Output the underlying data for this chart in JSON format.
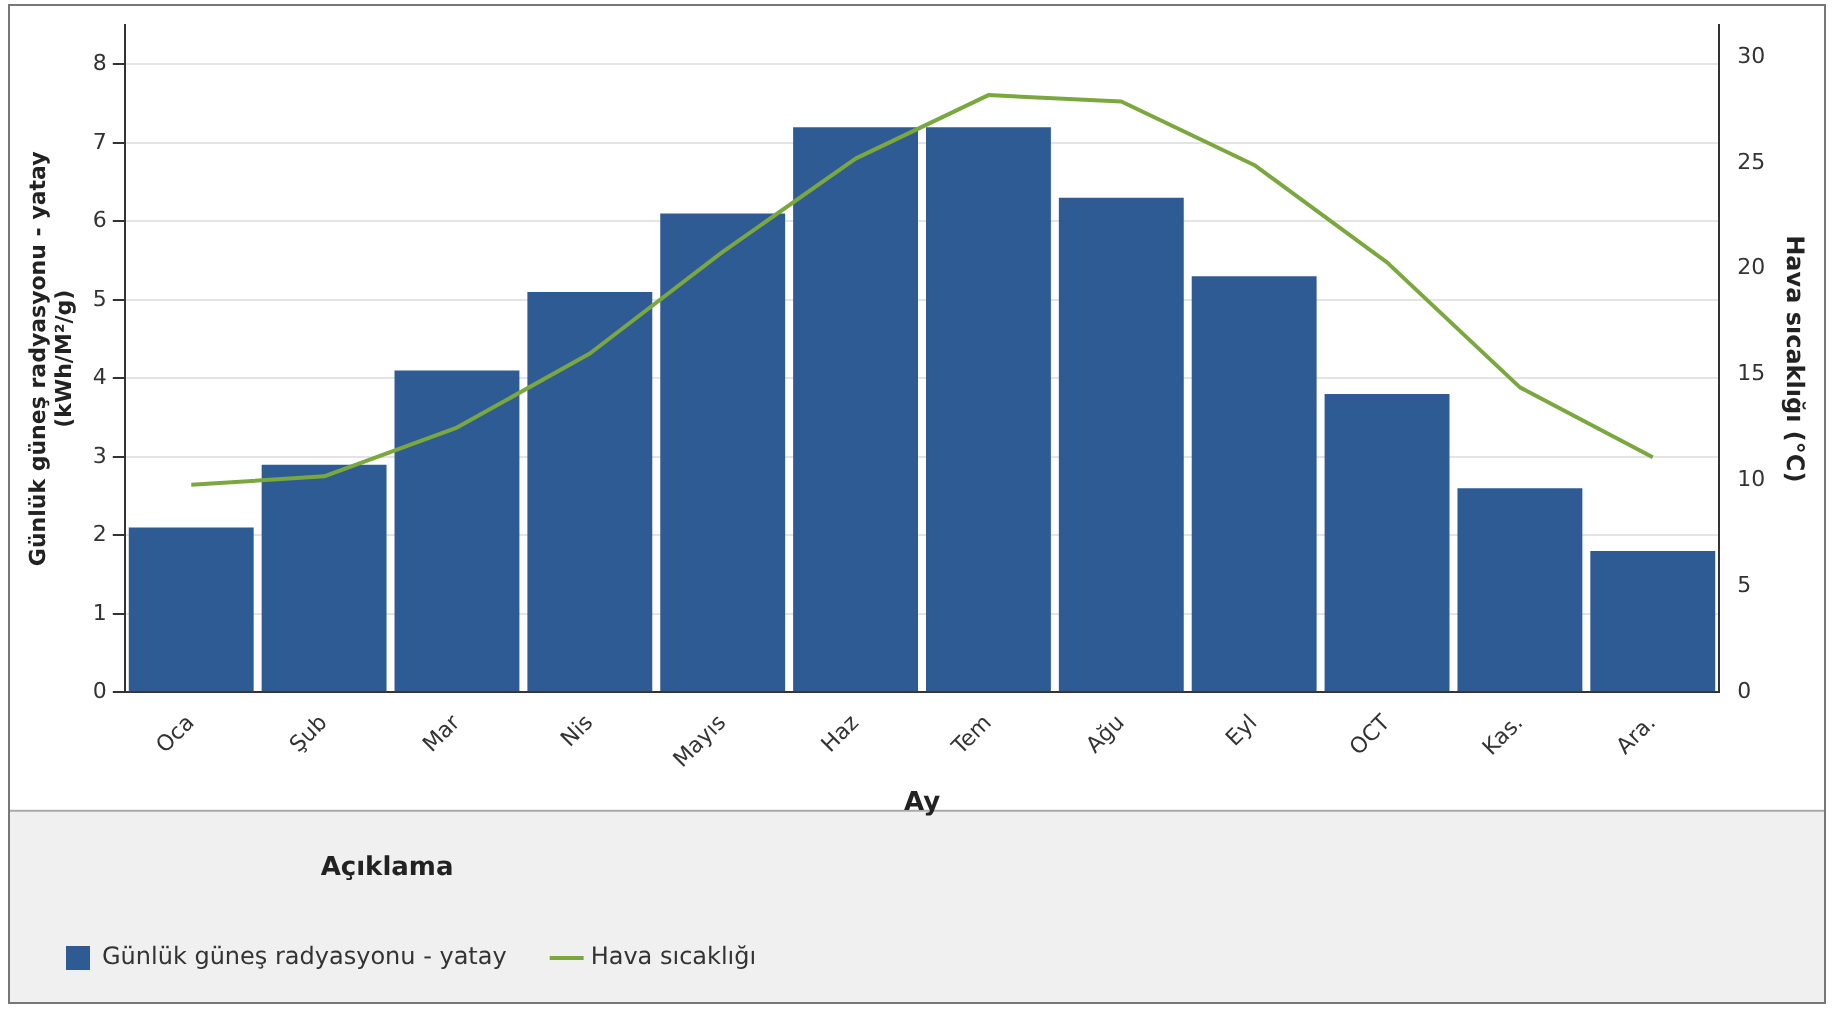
{
  "chart_data": {
    "type": "bar",
    "xlabel": "Ay",
    "ylabel": "Günlük güneş radyasyonu - yatay\n(kWh/M²/g)",
    "y2label": "Hava sıcaklığı (°C)",
    "legend_title": "Açıklama",
    "categories": [
      "Oca",
      "Şub",
      "Mar",
      "Nis",
      "Mayıs",
      "Haz",
      "Tem",
      "Ağu",
      "Eyl",
      "OCT",
      "Kas.",
      "Ara."
    ],
    "series": [
      {
        "name": "Günlük güneş radyasyonu - yatay",
        "color": "#2f5b94",
        "values": [
          2.1,
          2.9,
          4.1,
          5.1,
          6.1,
          7.2,
          7.2,
          6.3,
          5.3,
          3.8,
          2.6,
          1.8
        ]
      },
      {
        "name": "Hava sıcaklığı",
        "type": "line",
        "axis": "y2",
        "color": "#7aa83e",
        "values": [
          9.8,
          10.2,
          12.5,
          16.0,
          20.8,
          25.2,
          28.2,
          27.9,
          24.9,
          20.3,
          14.4,
          11.1
        ]
      }
    ],
    "ylim": [
      0,
      8.5
    ],
    "yticks": [
      0,
      1,
      2,
      3,
      4,
      5,
      6,
      7,
      8
    ],
    "y2lim": [
      0,
      31.5
    ],
    "y2ticks": [
      0,
      5,
      10,
      15,
      20,
      25,
      30
    ],
    "grid": "y",
    "legend": "bottom",
    "marker": "none"
  }
}
